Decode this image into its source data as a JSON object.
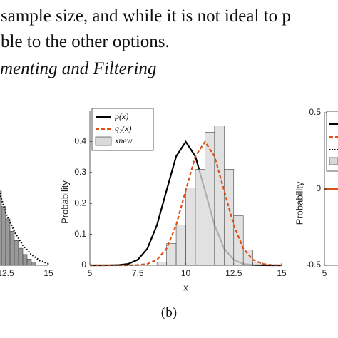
{
  "text": {
    "line1": "sample size, and while it is not ideal to p",
    "line2": "ble to the other options.",
    "heading": "menting and Filtering"
  },
  "chart_data": [
    {
      "type": "histogram",
      "xlim": [
        5,
        15
      ],
      "ylim": [
        0,
        0.5
      ],
      "xticks": [
        12.5,
        15
      ],
      "series": [
        {
          "type": "histogram",
          "color": "#808080",
          "bins": [
            12,
            12.25,
            12.5,
            12.75,
            13,
            13.25,
            13.5,
            13.75,
            14,
            14.25
          ],
          "values": [
            0.24,
            0.19,
            0.15,
            0.11,
            0.08,
            0.055,
            0.035,
            0.02,
            0.01
          ]
        },
        {
          "type": "line",
          "color": "#000000",
          "dash": "dotted",
          "x": [
            12,
            12.5,
            13,
            13.5,
            14,
            14.5,
            15
          ],
          "values": [
            0.26,
            0.17,
            0.11,
            0.065,
            0.035,
            0.015,
            0.005
          ]
        }
      ]
    },
    {
      "type": "histogram",
      "xlabel": "x",
      "ylabel": "Probability",
      "xlim": [
        5,
        15
      ],
      "ylim": [
        0,
        0.5
      ],
      "xticks": [
        5,
        7.5,
        10,
        12.5,
        15
      ],
      "yticks": [
        0,
        0.1,
        0.2,
        0.3,
        0.4
      ],
      "series": [
        {
          "name": "p(x)",
          "type": "line",
          "color": "#000000",
          "dash": "solid",
          "x": [
            5,
            5.5,
            6,
            6.5,
            7,
            7.5,
            8,
            8.5,
            9,
            9.5,
            10,
            10.5,
            11,
            11.5,
            12,
            12.5,
            13,
            13.5,
            14,
            14.5,
            15
          ],
          "values": [
            0,
            0,
            0.0001,
            0.0009,
            0.0044,
            0.018,
            0.054,
            0.13,
            0.242,
            0.352,
            0.399,
            0.352,
            0.242,
            0.13,
            0.054,
            0.018,
            0.0044,
            0.0009,
            0.0001,
            0,
            0
          ]
        },
        {
          "name": "q₂(x)",
          "type": "line",
          "color": "#d95319",
          "dash": "dashed",
          "x": [
            5,
            5.5,
            6,
            6.5,
            7,
            7.5,
            8,
            8.5,
            9,
            9.5,
            10,
            10.5,
            11,
            11.5,
            12,
            12.5,
            13,
            13.5,
            14,
            14.5,
            15
          ],
          "values": [
            0,
            0,
            0,
            0,
            0.0001,
            0.0009,
            0.0044,
            0.018,
            0.054,
            0.13,
            0.242,
            0.352,
            0.399,
            0.352,
            0.242,
            0.13,
            0.054,
            0.018,
            0.0044,
            0.0009,
            0.0001
          ]
        },
        {
          "name": "xnew",
          "type": "histogram",
          "color": "#d9d9d9",
          "bins": [
            8.5,
            9,
            9.5,
            10,
            10.5,
            11,
            11.5,
            12,
            12.5,
            13,
            13.5,
            14
          ],
          "values": [
            0.01,
            0.07,
            0.13,
            0.25,
            0.31,
            0.43,
            0.45,
            0.31,
            0.16,
            0.05,
            0.01
          ]
        }
      ]
    },
    {
      "type": "line",
      "ylabel": "Probability",
      "xlim": [
        5,
        15
      ],
      "ylim": [
        -0.5,
        0.5
      ],
      "xticks": [
        5
      ],
      "yticks": [
        -0.5,
        0,
        0.5
      ],
      "series": [
        {
          "type": "line",
          "color": "#d95319",
          "dash": "solid",
          "x": [
            5,
            15
          ],
          "values": [
            0,
            0
          ]
        }
      ]
    }
  ],
  "caption": "(b)"
}
